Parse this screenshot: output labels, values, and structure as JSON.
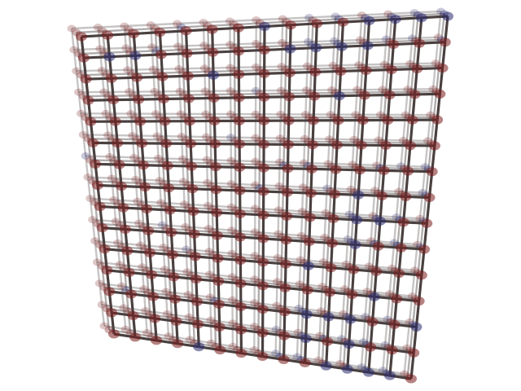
{
  "scene": {
    "background_color": "#ffffff",
    "description_colors": {
      "bond": "#4a4040",
      "atom_primary": "#7a1c1c",
      "atom_secondary": "#2a2a6e"
    },
    "lattice": {
      "rows": 15,
      "cols": 15,
      "depth_layers": 3
    },
    "icons": [
      "atom-sphere",
      "bond-rod"
    ]
  }
}
